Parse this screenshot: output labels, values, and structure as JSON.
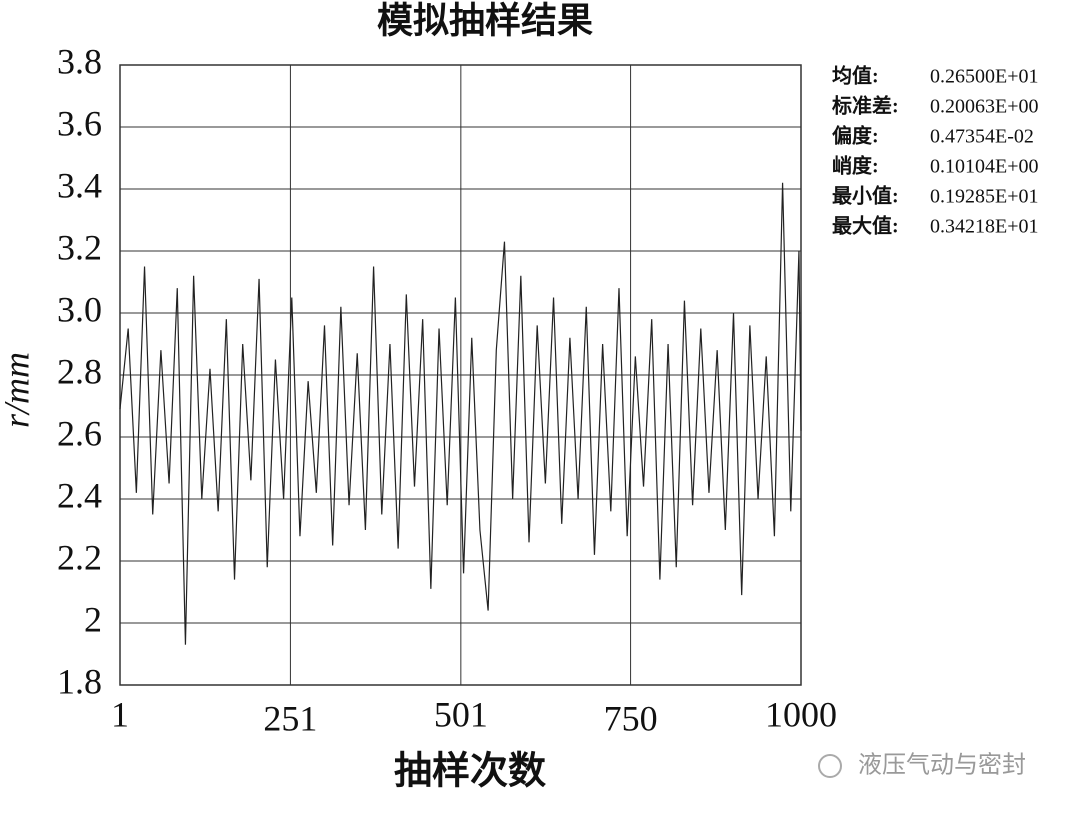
{
  "chart_data": {
    "type": "line",
    "title": "模拟抽样结果",
    "xlabel": "抽样次数",
    "ylabel": "r/mm",
    "xlim": [
      1,
      1000
    ],
    "ylim": [
      1.8,
      3.8
    ],
    "xticks": [
      1,
      251,
      501,
      750,
      1000
    ],
    "yticks": [
      1.8,
      2,
      2.2,
      2.4,
      2.6,
      2.8,
      {
        "value": 3,
        "label": "3.0"
      },
      3.2,
      3.4,
      3.6,
      3.8
    ],
    "grid": true,
    "x": [
      1,
      13,
      25,
      37,
      49,
      61,
      73,
      85,
      97,
      109,
      121,
      133,
      145,
      157,
      169,
      181,
      193,
      205,
      217,
      229,
      241,
      253,
      265,
      277,
      289,
      301,
      313,
      325,
      337,
      349,
      361,
      373,
      385,
      397,
      409,
      421,
      433,
      445,
      457,
      469,
      481,
      493,
      505,
      517,
      529,
      541,
      553,
      565,
      577,
      589,
      601,
      613,
      625,
      637,
      649,
      661,
      673,
      685,
      697,
      709,
      721,
      733,
      745,
      757,
      769,
      781,
      793,
      805,
      817,
      829,
      841,
      853,
      865,
      877,
      889,
      901,
      913,
      925,
      937,
      949,
      961,
      973,
      985,
      997,
      1000
    ],
    "series": [
      {
        "color": "#222222",
        "values": [
          2.69,
          2.95,
          2.42,
          3.15,
          2.35,
          2.88,
          2.45,
          3.08,
          1.93,
          3.12,
          2.4,
          2.82,
          2.36,
          2.98,
          2.14,
          2.9,
          2.46,
          3.11,
          2.18,
          2.85,
          2.4,
          3.05,
          2.28,
          2.78,
          2.42,
          2.96,
          2.25,
          3.02,
          2.38,
          2.87,
          2.3,
          3.15,
          2.35,
          2.9,
          2.24,
          3.06,
          2.44,
          2.98,
          2.11,
          2.95,
          2.38,
          3.05,
          2.16,
          2.92,
          2.3,
          2.04,
          2.88,
          3.23,
          2.4,
          3.12,
          2.26,
          2.96,
          2.45,
          3.05,
          2.32,
          2.92,
          2.4,
          3.02,
          2.22,
          2.9,
          2.36,
          3.08,
          2.28,
          2.86,
          2.44,
          2.98,
          2.14,
          2.9,
          2.18,
          3.04,
          2.38,
          2.95,
          2.42,
          2.88,
          2.3,
          3.0,
          2.09,
          2.96,
          2.4,
          2.86,
          2.28,
          3.42,
          2.36,
          3.2,
          2.62
        ]
      }
    ],
    "stats": [
      {
        "label": "均值:",
        "value": "0.26500E+01"
      },
      {
        "label": "标准差:",
        "value": "0.20063E+00"
      },
      {
        "label": "偏度:",
        "value": "0.47354E-02"
      },
      {
        "label": "峭度:",
        "value": "0.10104E+00"
      },
      {
        "label": "最小值:",
        "value": "0.19285E+01"
      },
      {
        "label": "最大值:",
        "value": "0.34218E+01"
      }
    ],
    "watermark": "液压气动与密封"
  }
}
